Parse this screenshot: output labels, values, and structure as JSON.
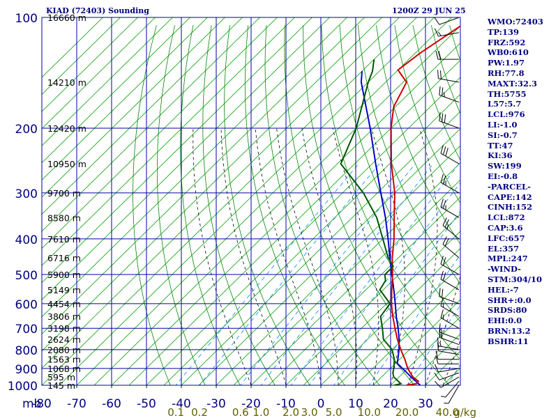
{
  "header": {
    "station": "KIAD (72403) Sounding",
    "time": "1200Z 29 JUN 25"
  },
  "indices": [
    "WMO:72403",
    "TP:139",
    "FRZ:592",
    "WB0:610",
    "PW:1.97",
    "RH:77.8",
    "MAXT:32.3",
    "TH:5755",
    "L57:5.7",
    "LCL:976",
    "LI:-1.0",
    "SI:-0.7",
    "TT:47",
    "KI:36",
    "SW:199",
    "EI:-0.8",
    "-PARCEL-",
    "CAPE:142",
    "CINH:152",
    "LCL:872",
    "CAP:3.6",
    "LFC:657",
    "EL:357",
    "MPL:247",
    "-WIND-",
    "STM:304/10",
    "HEL:-7",
    "SHR+:0.0",
    "SRDS:80",
    "EHI:0.0",
    "BRN:13.2",
    "BSHR:11"
  ],
  "colors": {
    "grid": "#0000a0",
    "axis_text": "#000080",
    "heights": "#000000",
    "dry_adiabats": "#008800",
    "isotherms": "#00a000",
    "moist_adiabats": "#000000",
    "mixing_ratio": "#0080ff",
    "mixing_labels": "#606000",
    "temperature": "#cc0000",
    "dewpoint": "#005500",
    "parcel": "#0000cc"
  },
  "chart_data": {
    "type": "skew-t",
    "x_axis_unit": "mb",
    "temperature_ticks": [
      -80,
      -70,
      -60,
      -50,
      -40,
      -30,
      -20,
      -10,
      0,
      10,
      20,
      30
    ],
    "temperature_tick_labels": [
      "-80",
      "-70",
      "-60",
      "-50",
      "-40",
      "-30",
      "-20",
      "-10",
      "0",
      "10",
      "20",
      "30"
    ],
    "pressure_ticks": [
      100,
      200,
      300,
      400,
      500,
      600,
      700,
      800,
      900,
      1000
    ],
    "pressure_tick_labels": [
      "100",
      "200",
      "300",
      "400",
      "500",
      "600",
      "700",
      "800",
      "900",
      "1000"
    ],
    "heights": [
      {
        "p": 100,
        "label": "16660 m"
      },
      {
        "p": 150,
        "label": "14210 m"
      },
      {
        "p": 200,
        "label": "12420 m"
      },
      {
        "p": 250,
        "label": "10950 m"
      },
      {
        "p": 300,
        "label": "9700 m"
      },
      {
        "p": 350,
        "label": "8580 m"
      },
      {
        "p": 400,
        "label": "7610 m"
      },
      {
        "p": 450,
        "label": "6716 m"
      },
      {
        "p": 500,
        "label": "5900 m"
      },
      {
        "p": 550,
        "label": "5149 m"
      },
      {
        "p": 600,
        "label": "4454 m"
      },
      {
        "p": 650,
        "label": "3806 m"
      },
      {
        "p": 700,
        "label": "3198 m"
      },
      {
        "p": 750,
        "label": "2624 m"
      },
      {
        "p": 800,
        "label": "2080 m"
      },
      {
        "p": 850,
        "label": "1563 m"
      },
      {
        "p": 900,
        "label": "1068 m"
      },
      {
        "p": 950,
        "label": "595 m"
      },
      {
        "p": 1000,
        "label": "145 m"
      }
    ],
    "mixing_ratio_labels": [
      "0.1",
      "0.2",
      "0.6",
      "1.0",
      "2.0",
      "3.0",
      "5.0",
      "10.0",
      "20.0",
      "40.0"
    ],
    "mixing_ratio_unit": "g/kg",
    "temperature": [
      {
        "p": 1000,
        "t": 24.5
      },
      {
        "p": 990,
        "t": 27.0
      },
      {
        "p": 975,
        "t": 26.8
      },
      {
        "p": 950,
        "t": 24.0
      },
      {
        "p": 925,
        "t": 22.0
      },
      {
        "p": 900,
        "t": 20.0
      },
      {
        "p": 850,
        "t": 16.5
      },
      {
        "p": 800,
        "t": 12.5
      },
      {
        "p": 750,
        "t": 8.5
      },
      {
        "p": 700,
        "t": 4.6
      },
      {
        "p": 650,
        "t": 0.5
      },
      {
        "p": 600,
        "t": -3.6
      },
      {
        "p": 550,
        "t": -7.6
      },
      {
        "p": 500,
        "t": -11.8
      },
      {
        "p": 450,
        "t": -16.8
      },
      {
        "p": 400,
        "t": -21.8
      },
      {
        "p": 350,
        "t": -28.0
      },
      {
        "p": 300,
        "t": -35.0
      },
      {
        "p": 250,
        "t": -44.5
      },
      {
        "p": 200,
        "t": -55.0
      },
      {
        "p": 175,
        "t": -60.5
      },
      {
        "p": 150,
        "t": -64.0
      },
      {
        "p": 139,
        "t": -70.0
      },
      {
        "p": 125,
        "t": -68.6
      },
      {
        "p": 100,
        "t": -63.8
      }
    ],
    "dewpoint": [
      {
        "p": 1000,
        "t": 21.0
      },
      {
        "p": 990,
        "t": 22.5
      },
      {
        "p": 975,
        "t": 21.0
      },
      {
        "p": 950,
        "t": 18.5
      },
      {
        "p": 925,
        "t": 17.0
      },
      {
        "p": 900,
        "t": 16.0
      },
      {
        "p": 850,
        "t": 13.5
      },
      {
        "p": 800,
        "t": 10.0
      },
      {
        "p": 750,
        "t": 4.5
      },
      {
        "p": 700,
        "t": 1.0
      },
      {
        "p": 650,
        "t": -3.0
      },
      {
        "p": 600,
        "t": -4.0
      },
      {
        "p": 550,
        "t": -11.0
      },
      {
        "p": 520,
        "t": -12.0
      },
      {
        "p": 500,
        "t": -14.0
      },
      {
        "p": 475,
        "t": -14.0
      },
      {
        "p": 450,
        "t": -18.0
      },
      {
        "p": 400,
        "t": -25.0
      },
      {
        "p": 350,
        "t": -33.0
      },
      {
        "p": 300,
        "t": -44.0
      },
      {
        "p": 250,
        "t": -59.0
      },
      {
        "p": 200,
        "t": -65.0
      },
      {
        "p": 150,
        "t": -75.0
      },
      {
        "p": 140,
        "t": -77.0
      },
      {
        "p": 130,
        "t": -80.0
      }
    ],
    "parcel": [
      {
        "p": 1000,
        "t": 28.5
      },
      {
        "p": 950,
        "t": 23.5
      },
      {
        "p": 900,
        "t": 18.5
      },
      {
        "p": 872,
        "t": 15.5
      },
      {
        "p": 850,
        "t": 14.5
      },
      {
        "p": 800,
        "t": 12.0
      },
      {
        "p": 750,
        "t": 9.0
      },
      {
        "p": 700,
        "t": 5.5
      },
      {
        "p": 650,
        "t": 1.5
      },
      {
        "p": 600,
        "t": -2.5
      },
      {
        "p": 550,
        "t": -7.0
      },
      {
        "p": 500,
        "t": -12.0
      },
      {
        "p": 450,
        "t": -17.5
      },
      {
        "p": 400,
        "t": -23.5
      },
      {
        "p": 350,
        "t": -30.5
      },
      {
        "p": 300,
        "t": -39.0
      },
      {
        "p": 250,
        "t": -49.0
      },
      {
        "p": 200,
        "t": -61.0
      },
      {
        "p": 150,
        "t": -77.0
      },
      {
        "p": 140,
        "t": -80.0
      }
    ],
    "wind_barbs": [
      {
        "p": 1000,
        "dir": 210,
        "spd": 5
      },
      {
        "p": 975,
        "dir": 220,
        "spd": 5
      },
      {
        "p": 950,
        "dir": 240,
        "spd": 10
      },
      {
        "p": 925,
        "dir": 250,
        "spd": 10
      },
      {
        "p": 900,
        "dir": 260,
        "spd": 10
      },
      {
        "p": 875,
        "dir": 270,
        "spd": 10
      },
      {
        "p": 850,
        "dir": 270,
        "spd": 10
      },
      {
        "p": 825,
        "dir": 280,
        "spd": 10
      },
      {
        "p": 800,
        "dir": 280,
        "spd": 15
      },
      {
        "p": 775,
        "dir": 290,
        "spd": 15
      },
      {
        "p": 750,
        "dir": 290,
        "spd": 15
      },
      {
        "p": 700,
        "dir": 300,
        "spd": 15
      },
      {
        "p": 650,
        "dir": 300,
        "spd": 15
      },
      {
        "p": 600,
        "dir": 290,
        "spd": 20
      },
      {
        "p": 550,
        "dir": 300,
        "spd": 20
      },
      {
        "p": 500,
        "dir": 300,
        "spd": 20
      },
      {
        "p": 450,
        "dir": 310,
        "spd": 20
      },
      {
        "p": 400,
        "dir": 310,
        "spd": 25
      },
      {
        "p": 350,
        "dir": 300,
        "spd": 25
      },
      {
        "p": 300,
        "dir": 300,
        "spd": 25
      },
      {
        "p": 250,
        "dir": 300,
        "spd": 30
      },
      {
        "p": 200,
        "dir": 290,
        "spd": 30
      },
      {
        "p": 170,
        "dir": 290,
        "spd": 25
      },
      {
        "p": 150,
        "dir": 280,
        "spd": 20
      },
      {
        "p": 130,
        "dir": 270,
        "spd": 20
      },
      {
        "p": 110,
        "dir": 260,
        "spd": 15
      },
      {
        "p": 100,
        "dir": 250,
        "spd": 10
      }
    ]
  }
}
